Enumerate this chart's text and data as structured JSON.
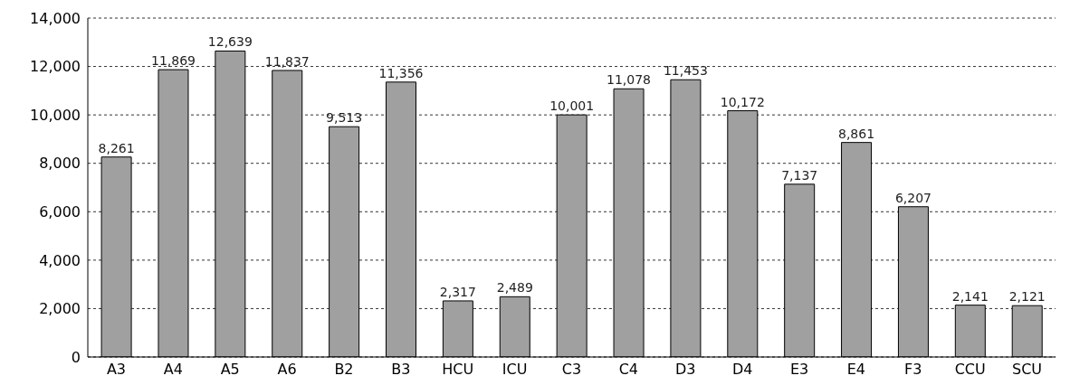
{
  "chart_data": {
    "type": "bar",
    "categories": [
      "A3",
      "A4",
      "A5",
      "A6",
      "B2",
      "B3",
      "HCU",
      "ICU",
      "C3",
      "C4",
      "D3",
      "D4",
      "E3",
      "E4",
      "F3",
      "CCU",
      "SCU"
    ],
    "values": [
      8261,
      11869,
      12639,
      11837,
      9513,
      11356,
      2317,
      2489,
      10001,
      11078,
      11453,
      10172,
      7137,
      8861,
      6207,
      2141,
      2121
    ],
    "value_labels": [
      "8,261",
      "11,869",
      "12,639",
      "11,837",
      "9,513",
      "11,356",
      "2,317",
      "2,489",
      "10,001",
      "11,078",
      "11,453",
      "10,172",
      "7,137",
      "8,861",
      "6,207",
      "2,141",
      "2,121"
    ],
    "color": "#a0a0a0",
    "ylim": [
      0,
      14000
    ],
    "yticks": [
      {
        "value": 0,
        "label": "0"
      },
      {
        "value": 2000,
        "label": "2,000"
      },
      {
        "value": 4000,
        "label": "4,000"
      },
      {
        "value": 6000,
        "label": "6,000"
      },
      {
        "value": 8000,
        "label": "8,000"
      },
      {
        "value": 10000,
        "label": "10,000"
      },
      {
        "value": 12000,
        "label": "12,000"
      },
      {
        "value": 14000,
        "label": "14,000"
      }
    ],
    "grid": "y"
  }
}
